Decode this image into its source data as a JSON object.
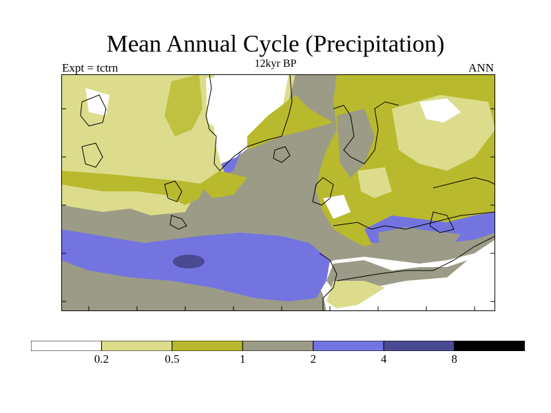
{
  "header": {
    "title": "Mean Annual Cycle (Precipitation)",
    "subtitle": "12kyr BP",
    "left_label": "Expt = tctrn",
    "right_label": "ANN"
  },
  "legend": {
    "colors": [
      "#ffffff",
      "#dcdc8c",
      "#b9b92e",
      "#9b9b87",
      "#7474e0",
      "#4a4a93",
      "#000000"
    ],
    "labels": [
      "0.2",
      "0.5",
      "1",
      "2",
      "4",
      "8"
    ]
  },
  "map": {
    "background_color": "#9b9b87",
    "coastline_color": "#000000"
  }
}
